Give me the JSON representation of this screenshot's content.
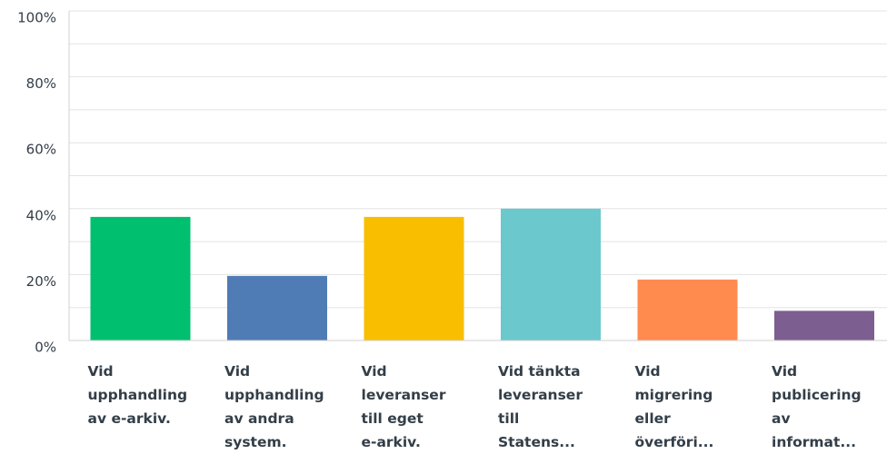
{
  "chart_data": {
    "type": "bar",
    "categories": [
      "Vid\nupphandling\nav e-arkiv.",
      "Vid\nupphandling\nav andra\nsystem.",
      "Vid\nleveranser\ntill eget\ne-arkiv.",
      "Vid tänkta\nleveranser\ntill\nStatens...",
      "Vid\nmigrering\neller\növerföri...",
      "Vid\npublicering\nav\ninformat..."
    ],
    "values": [
      37.5,
      19.6,
      37.5,
      40,
      18.5,
      9
    ],
    "colors": [
      "#00bf6f",
      "#507cb6",
      "#f9be00",
      "#6bc8cd",
      "#ff8b4f",
      "#7d5e90"
    ],
    "ylim": [
      0,
      100
    ],
    "yticks": [
      {
        "value": 0,
        "label": "0%"
      },
      {
        "value": 20,
        "label": "20%"
      },
      {
        "value": 40,
        "label": "40%"
      },
      {
        "value": 60,
        "label": "60%"
      },
      {
        "value": 80,
        "label": "80%"
      },
      {
        "value": 100,
        "label": "100%"
      }
    ],
    "minor_yticks": [
      10,
      30,
      50,
      70,
      90
    ],
    "grid": true
  }
}
